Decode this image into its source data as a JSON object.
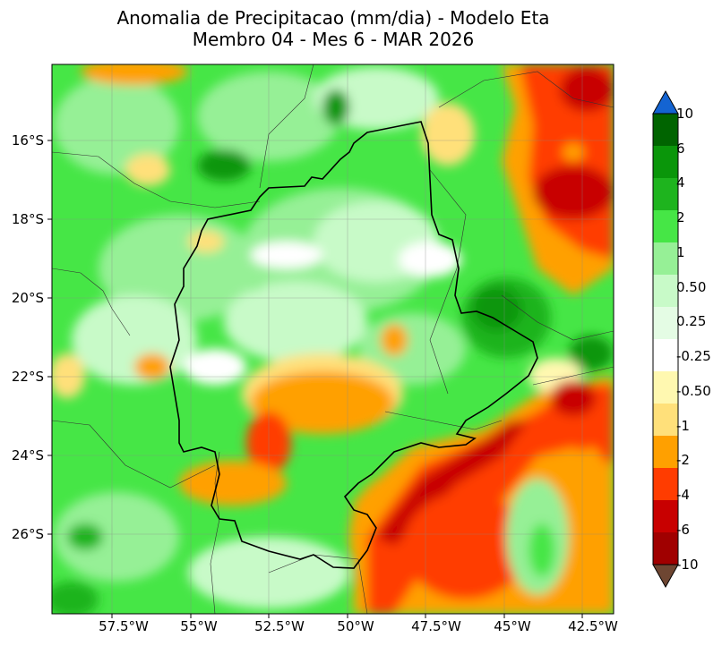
{
  "title": {
    "line1": "Anomalia de Precipitacao (mm/dia) - Modelo Eta",
    "line2": "Membro 04 - Mes 6 - MAR 2026"
  },
  "map": {
    "lat_ticks": [
      "16°S",
      "18°S",
      "20°S",
      "22°S",
      "24°S",
      "26°S"
    ],
    "lon_ticks": [
      "57.5°W",
      "55°W",
      "52.5°W",
      "50°W",
      "47.5°W",
      "45°W",
      "42.5°W"
    ],
    "lat_range": [
      -28.0,
      -14.0
    ],
    "lon_range": [
      -60.0,
      -42.0
    ]
  },
  "colorbar": {
    "labels": [
      "10",
      "6",
      "4",
      "2",
      "1",
      "0.50",
      "0.25",
      "-0.25",
      "-0.50",
      "-1",
      "-2",
      "-4",
      "-6",
      "-10"
    ],
    "colors": [
      "#006400",
      "#0a960a",
      "#1eb41e",
      "#46e646",
      "#96f096",
      "#c8fac8",
      "#e4fce4",
      "#ffffff",
      "#fff8b0",
      "#ffe07a",
      "#ffa000",
      "#ff3c00",
      "#c80000",
      "#a00000"
    ],
    "over_color": "#1464d2",
    "under_color": "#6e4632"
  }
}
